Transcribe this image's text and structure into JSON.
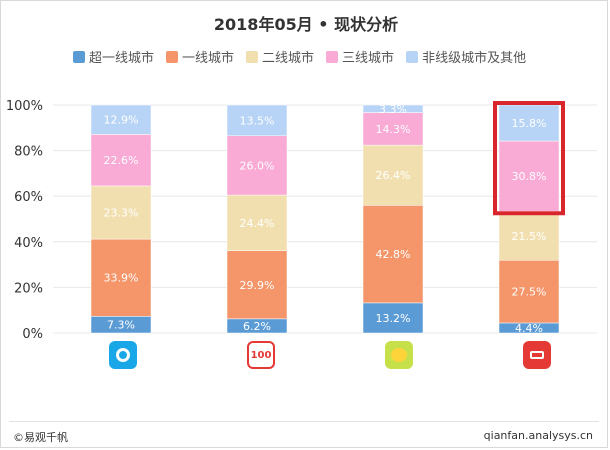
{
  "header": {
    "title": "2018年05月 • 现状分析"
  },
  "footer": {
    "source": "©易观千帆",
    "site": "qianfan.analysys.cn"
  },
  "icons": [
    "app-icon-1",
    "app-icon-2",
    "app-icon-3",
    "app-icon-4"
  ],
  "chart_data": {
    "type": "bar",
    "stacked": true,
    "title": "2018年05月 • 现状分析",
    "xlabel": "",
    "ylabel": "",
    "ylim": [
      0,
      100
    ],
    "y_ticks": [
      "0%",
      "20%",
      "40%",
      "60%",
      "80%",
      "100%"
    ],
    "y_tick_values": [
      0,
      20,
      40,
      60,
      80,
      100
    ],
    "categories": [
      "",
      "",
      "",
      ""
    ],
    "grid": true,
    "legend_position": "top",
    "highlight": {
      "category_index": 3,
      "series_indices": [
        3,
        4
      ],
      "color": "#d9262c"
    },
    "series": [
      {
        "name": "超一线城市",
        "color": "#5b9bd5",
        "values": [
          7.3,
          6.2,
          13.2,
          4.4
        ]
      },
      {
        "name": "一线城市",
        "color": "#f4956a",
        "values": [
          33.9,
          29.9,
          42.8,
          27.5
        ]
      },
      {
        "name": "二线城市",
        "color": "#f2dfb0",
        "values": [
          23.3,
          24.4,
          26.4,
          21.5
        ]
      },
      {
        "name": "三线城市",
        "color": "#f9aad5",
        "values": [
          22.6,
          26.0,
          14.3,
          30.8
        ]
      },
      {
        "name": "非线级城市及其他",
        "color": "#b7d3f5",
        "values": [
          12.9,
          13.5,
          3.3,
          15.8
        ]
      }
    ],
    "labels": [
      [
        "7.3%",
        "33.9%",
        "23.3%",
        "22.6%",
        "12.9%"
      ],
      [
        "6.2%",
        "29.9%",
        "24.4%",
        "26.0%",
        "13.5%"
      ],
      [
        "13.2%",
        "42.8%",
        "26.4%",
        "14.3%",
        "3.3%"
      ],
      [
        "4.4%",
        "27.5%",
        "21.5%",
        "30.8%",
        "15.8%"
      ]
    ]
  }
}
